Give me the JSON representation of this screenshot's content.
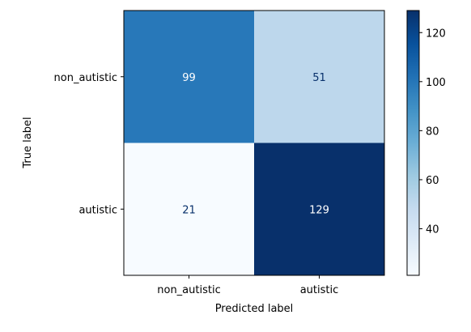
{
  "chart_data": {
    "type": "heatmap",
    "title": "",
    "xlabel": "Predicted label",
    "ylabel": "True label",
    "x_categories": [
      "non_autistic",
      "autistic"
    ],
    "y_categories": [
      "non_autistic",
      "autistic"
    ],
    "values": [
      [
        99,
        51
      ],
      [
        21,
        129
      ]
    ],
    "colormap": "Blues",
    "colorbar": {
      "min": 21,
      "max": 129,
      "ticks": [
        40,
        60,
        80,
        100,
        120
      ]
    },
    "grid": false
  }
}
